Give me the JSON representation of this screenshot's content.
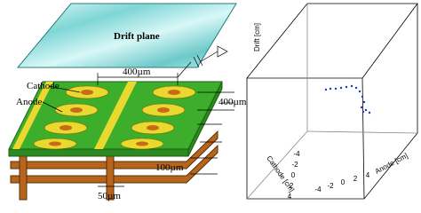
{
  "detector": {
    "drift_label": "Drift plane",
    "pitch_top": "400µm",
    "pitch_side": "400µm",
    "cathode": "Cathode",
    "anode": "Anode",
    "gap": "100µm",
    "width": "50µm"
  },
  "plot": {
    "z_label": "Drift [cm]",
    "y_label": "Cathode [cm]",
    "x_label": "Anode [cm]",
    "x_ticks": [
      "-4",
      "-2",
      "0",
      "2",
      "4"
    ],
    "y_ticks": [
      "4",
      "2",
      "0",
      "-2",
      "-4"
    ]
  }
}
